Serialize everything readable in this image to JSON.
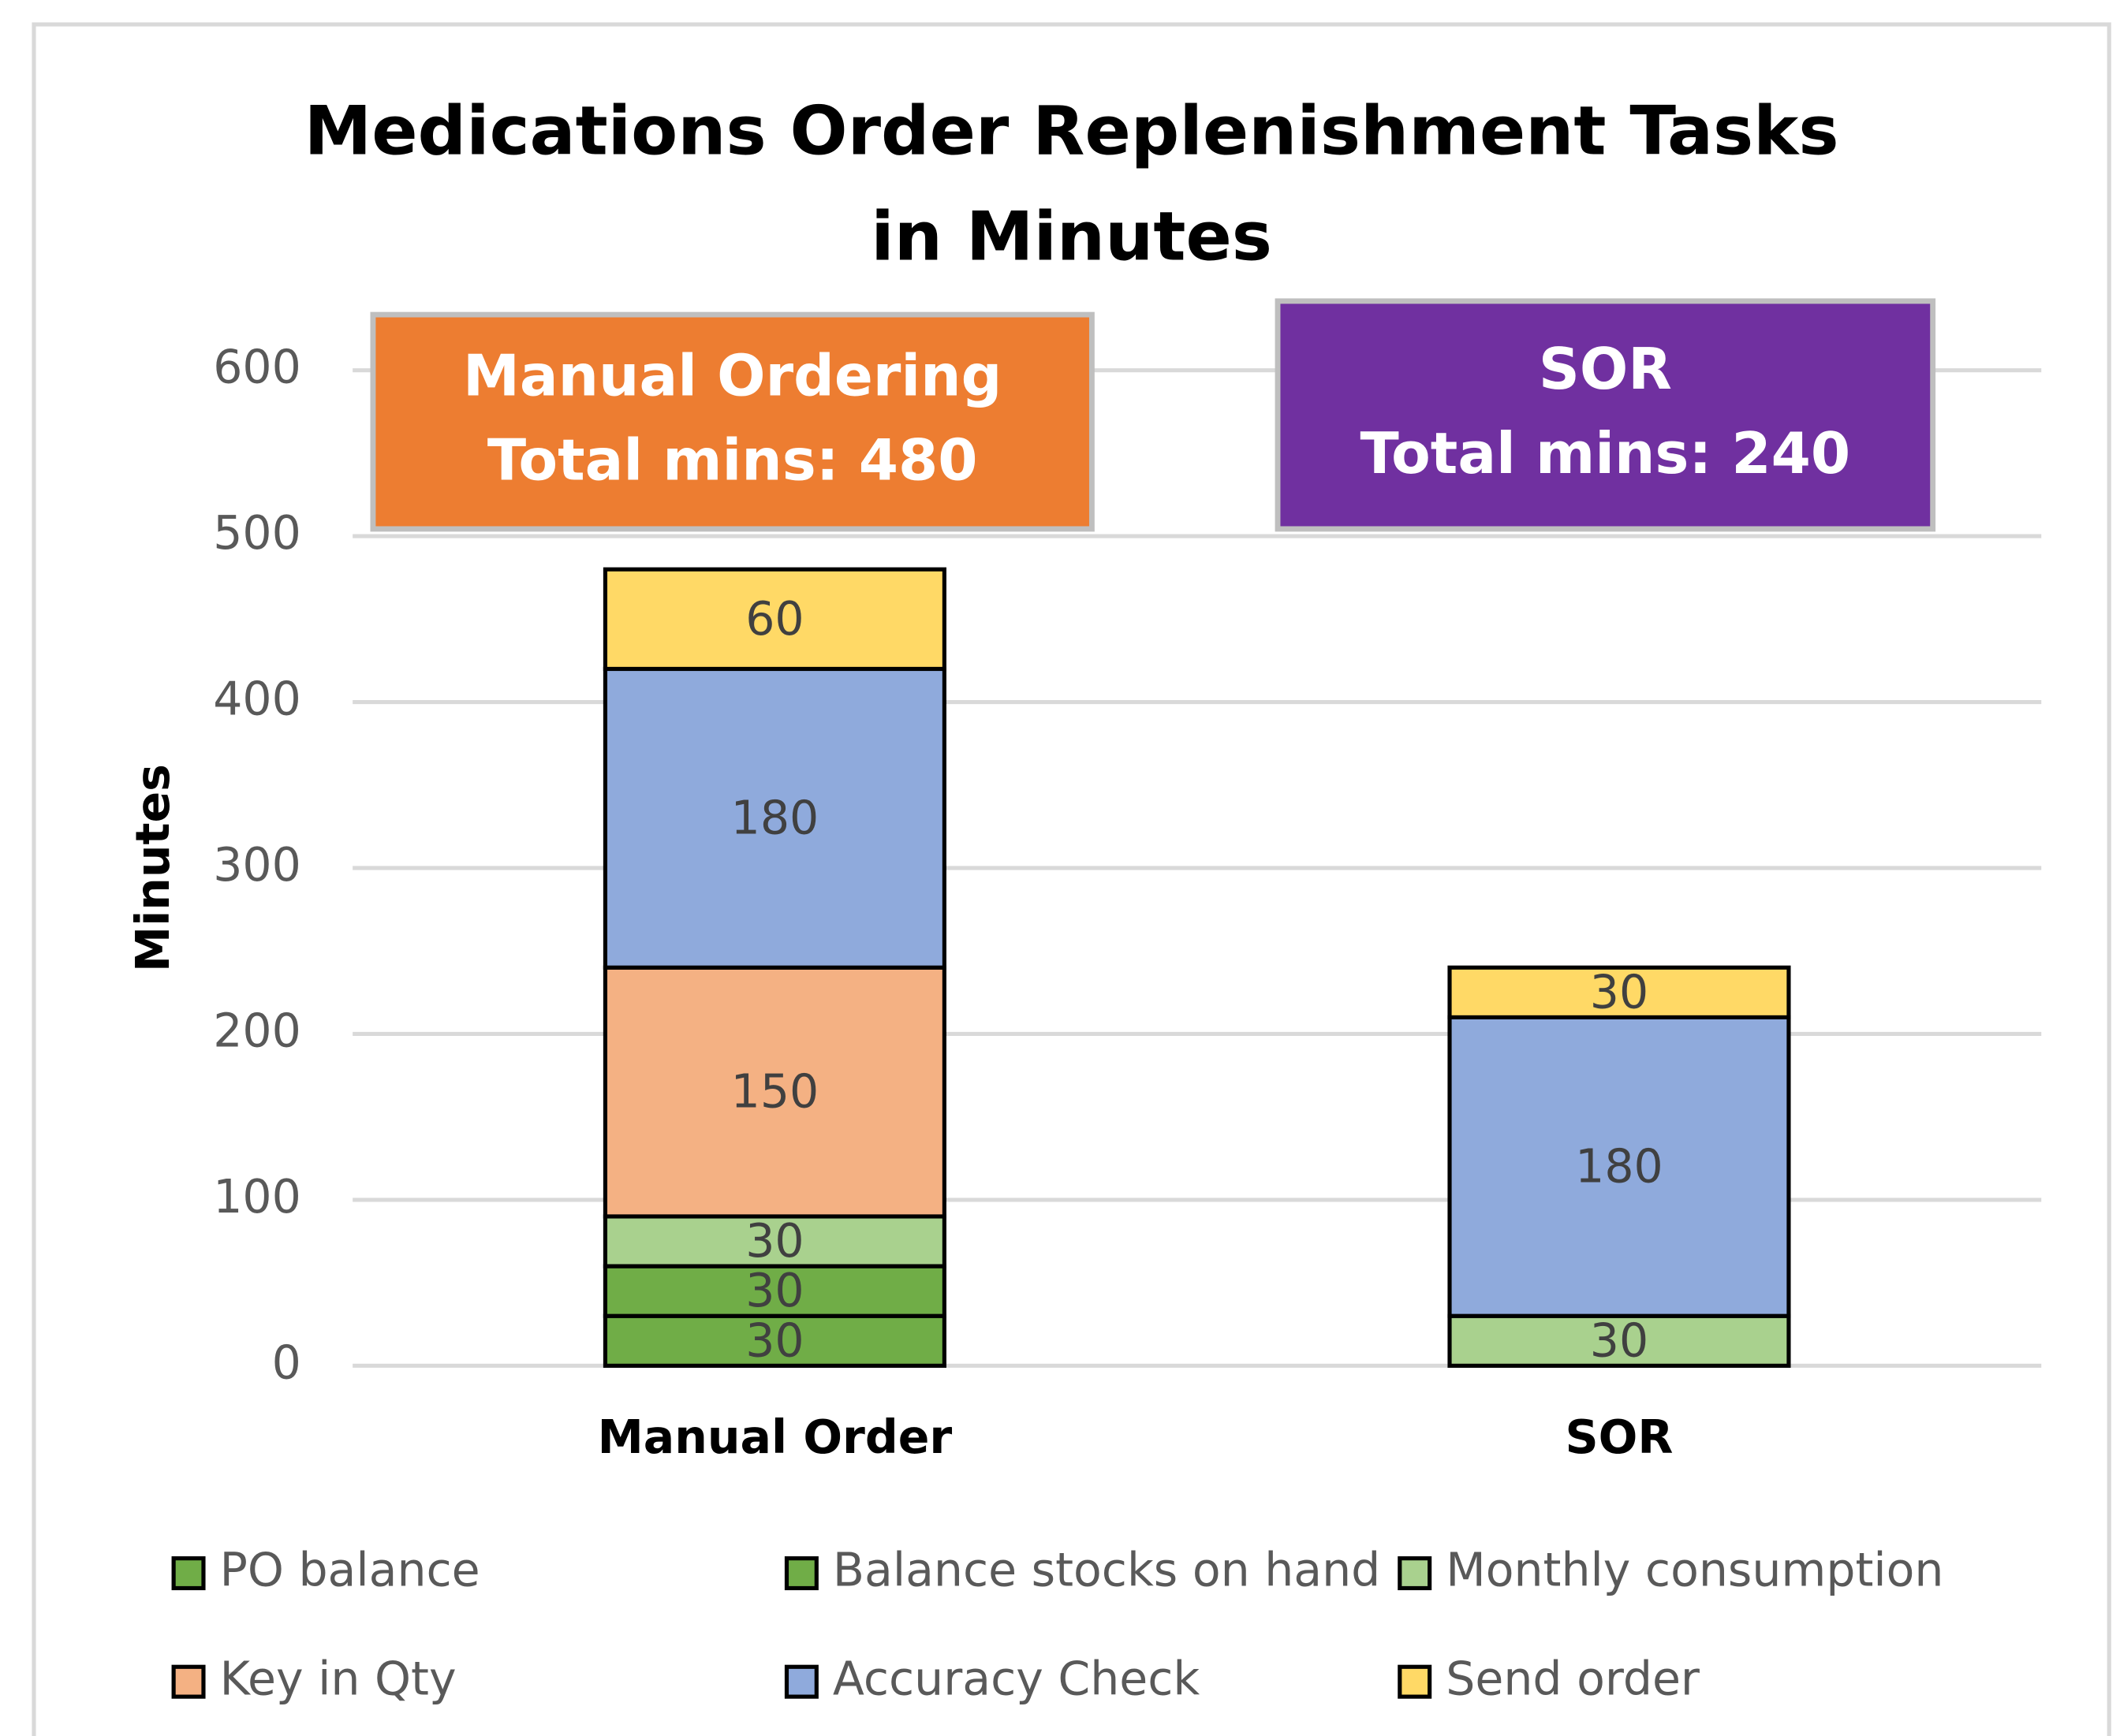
{
  "chart_data": {
    "type": "stacked_bar",
    "title": [
      "Medications Order Replenishment Tasks",
      "in Minutes"
    ],
    "y_label": "Minutes",
    "categories": [
      "Manual Order",
      "SOR"
    ],
    "series": [
      {
        "name": "PO balance",
        "color": "#70ad47",
        "values": [
          30,
          null
        ]
      },
      {
        "name": "Balance stocks on hand",
        "color": "#70ad47",
        "values": [
          30,
          null
        ]
      },
      {
        "name": "Monthly consumption",
        "color": "#a9d18e",
        "values": [
          30,
          30
        ]
      },
      {
        "name": "Key in Qty",
        "color": "#f4b183",
        "values": [
          150,
          null
        ]
      },
      {
        "name": "Accuracy Check",
        "color": "#8faadc",
        "values": [
          180,
          180
        ]
      },
      {
        "name": "Send order",
        "color": "#ffd966",
        "values": [
          60,
          30
        ]
      }
    ],
    "ylim": [
      0,
      600
    ],
    "yticks": [
      0,
      100,
      200,
      300,
      400,
      500,
      600
    ],
    "grid": true,
    "legend": "bottom",
    "annotations": [
      {
        "lines": [
          "Manual Ordering",
          "Total mins: 480"
        ],
        "color": "#ed7d31"
      },
      {
        "lines": [
          "SOR",
          "Total mins: 240"
        ],
        "color": "#7030a0"
      }
    ]
  }
}
